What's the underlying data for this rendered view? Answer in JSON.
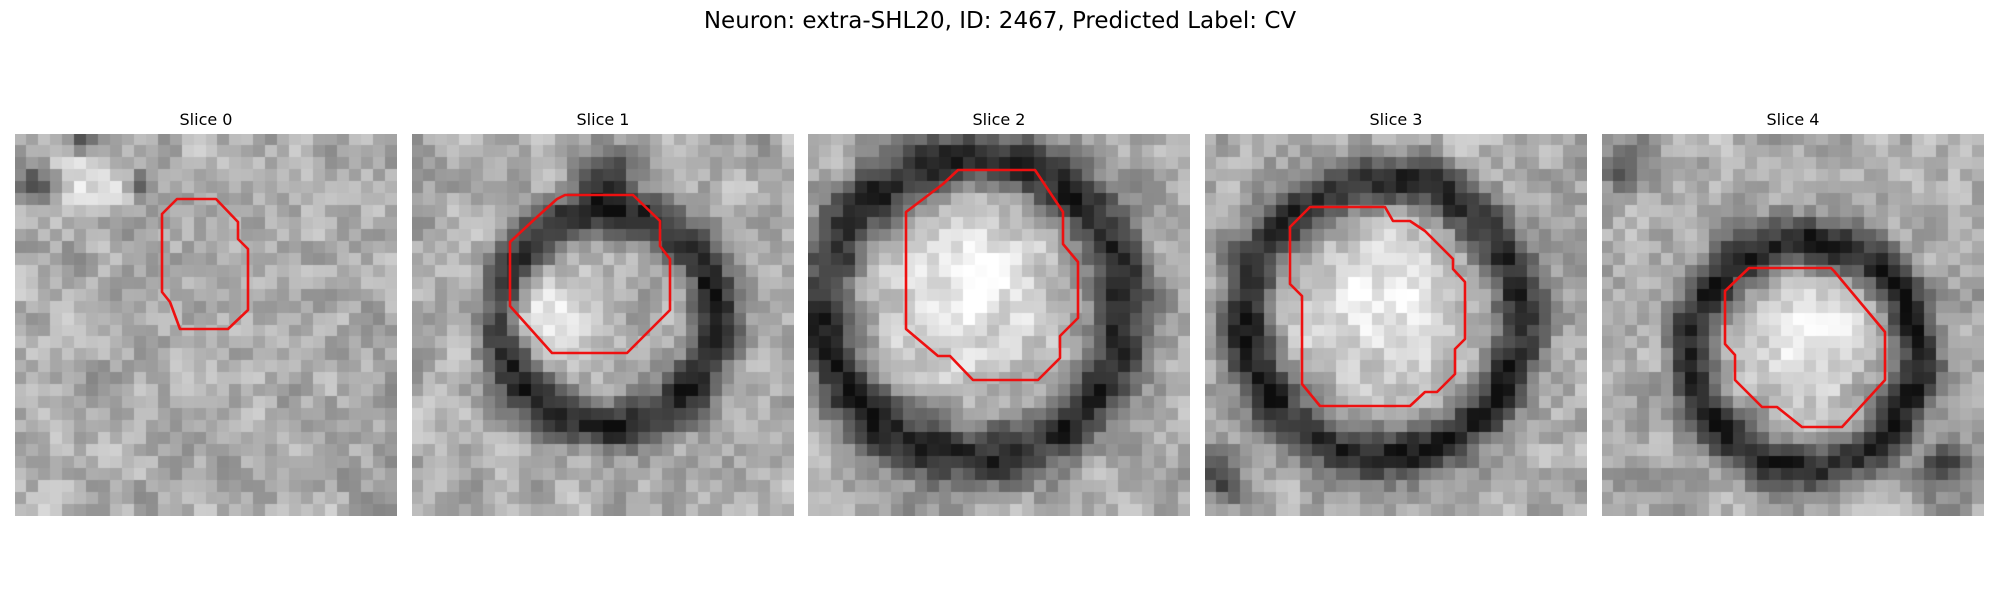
{
  "figure": {
    "suptitle": "Neuron: extra-SHL20, ID: 2467, Predicted Label: CV",
    "roi_color": "#ee1111",
    "colormap": "grayscale"
  },
  "slices": [
    {
      "title": "Slice 0"
    },
    {
      "title": "Slice 1"
    },
    {
      "title": "Slice 2"
    },
    {
      "title": "Slice 3"
    },
    {
      "title": "Slice 4"
    }
  ]
}
